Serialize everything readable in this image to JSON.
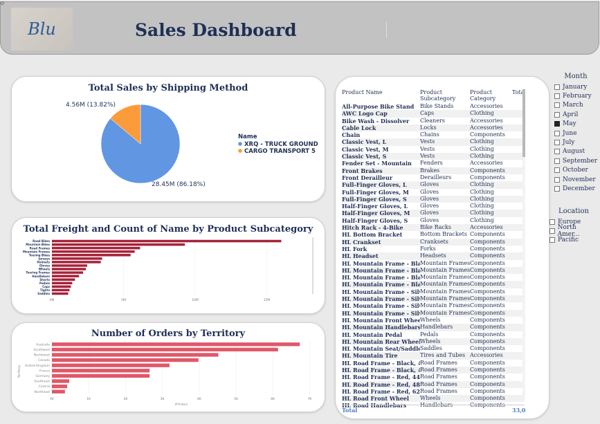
{
  "header": {
    "logo_text": "Blu",
    "title": "Sales Dashboard"
  },
  "pie_chart": {
    "title": "Total Sales by Shipping Method",
    "legend_title": "Name",
    "label_small": "4.56M (13.82%)",
    "label_large": "28.45M (86.18%)",
    "colors": {
      "primary": "#6196e3",
      "secondary": "#fc9b3a"
    },
    "chart_data": {
      "type": "pie",
      "title": "Total Sales by Shipping Method",
      "categories": [
        "XRQ - TRUCK GROUND",
        "CARGO TRANSPORT 5"
      ],
      "values": [
        28.45,
        4.56
      ],
      "legend_placement": "right"
    }
  },
  "freight_chart": {
    "title": "Total Freight and Count of Name by Product Subcategory",
    "color": "#a6233a",
    "chart_data": {
      "type": "bar",
      "title": "Total Freight and Count of Name by Product Subcategory",
      "categories": [
        "Road Bikes",
        "Mountain Bikes",
        "Road Frames",
        "Mountain Frames",
        "Touring Bikes",
        "Jerseys",
        "Helmets",
        "Gloves",
        "Wheels",
        "Touring Frames",
        "Handlebars",
        "Shorts",
        "Pedals",
        "Caps",
        "Tights",
        "Saddles"
      ],
      "values": [
        16.9,
        9.8,
        6.5,
        6.1,
        5.8,
        3.7,
        3.6,
        2.6,
        2.5,
        2.3,
        2.0,
        1.7,
        1.5,
        1.4,
        1.3,
        1.2
      ],
      "xticks": [
        "0M",
        "5M",
        "10M",
        "15M"
      ],
      "xlim": [
        0,
        18
      ]
    }
  },
  "orders_chart": {
    "title": "Number of Orders by Territory",
    "color": "#e05869",
    "ylabel": "Territory",
    "xlabel": "#Orders",
    "chart_data": {
      "type": "bar",
      "title": "Number of Orders by Territory",
      "categories": [
        "Australia",
        "Southwest",
        "Northwest",
        "Canada",
        "United Kingdom",
        "France",
        "Germany",
        "Southeast",
        "Central",
        "Northeast"
      ],
      "values": [
        6.85,
        6.25,
        4.6,
        4.05,
        3.25,
        2.7,
        2.7,
        0.48,
        0.42,
        0.36
      ],
      "xticks": [
        "0K",
        "1K",
        "2K",
        "3K",
        "4K",
        "5K",
        "6K",
        "7K"
      ],
      "xlim": [
        0,
        7
      ],
      "xlabel": "#Orders",
      "ylabel": "Territory"
    }
  },
  "table": {
    "headers": [
      "Product Name",
      "Product Subcategory",
      "Product Category",
      "Tota"
    ],
    "rows": [
      [
        "All-Purpose Bike Stand",
        "Bike Stands",
        "Accessories"
      ],
      [
        "AWC Logo Cap",
        "Caps",
        "Clothing"
      ],
      [
        "Bike Wash - Dissolver",
        "Cleaners",
        "Accessories"
      ],
      [
        "Cable Lock",
        "Locks",
        "Accessories"
      ],
      [
        "Chain",
        "Chains",
        "Components"
      ],
      [
        "Classic Vest, L",
        "Vests",
        "Clothing"
      ],
      [
        "Classic Vest, M",
        "Vests",
        "Clothing"
      ],
      [
        "Classic Vest, S",
        "Vests",
        "Clothing"
      ],
      [
        "Fender Set - Mountain",
        "Fenders",
        "Accessories"
      ],
      [
        "Front Brakes",
        "Brakes",
        "Components"
      ],
      [
        "Front Derailleur",
        "Derailleurs",
        "Components"
      ],
      [
        "Full-Finger Gloves, L",
        "Gloves",
        "Clothing"
      ],
      [
        "Full-Finger Gloves, M",
        "Gloves",
        "Clothing"
      ],
      [
        "Full-Finger Gloves, S",
        "Gloves",
        "Clothing"
      ],
      [
        "Half-Finger Gloves, L",
        "Gloves",
        "Clothing"
      ],
      [
        "Half-Finger Gloves, M",
        "Gloves",
        "Clothing"
      ],
      [
        "Half-Finger Gloves, S",
        "Gloves",
        "Clothing"
      ],
      [
        "Hitch Rack - 4-Bike",
        "Bike Racks",
        "Accessories"
      ],
      [
        "HL Bottom Bracket",
        "Bottom Brackets",
        "Components"
      ],
      [
        "HL Crankset",
        "Cranksets",
        "Components"
      ],
      [
        "HL Fork",
        "Forks",
        "Components"
      ],
      [
        "HL Headset",
        "Headsets",
        "Components"
      ],
      [
        "HL Mountain Frame - Black, 38",
        "Mountain Frames",
        "Components"
      ],
      [
        "HL Mountain Frame - Black, 42",
        "Mountain Frames",
        "Components"
      ],
      [
        "HL Mountain Frame - Black, 44",
        "Mountain Frames",
        "Components"
      ],
      [
        "HL Mountain Frame - Black, 48",
        "Mountain Frames",
        "Components"
      ],
      [
        "HL Mountain Frame - Silver, 38",
        "Mountain Frames",
        "Components"
      ],
      [
        "HL Mountain Frame - Silver, 42",
        "Mountain Frames",
        "Components"
      ],
      [
        "HL Mountain Frame - Silver, 46",
        "Mountain Frames",
        "Components"
      ],
      [
        "HL Mountain Frame - Silver, 48",
        "Mountain Frames",
        "Components"
      ],
      [
        "HL Mountain Front Wheel",
        "Wheels",
        "Components"
      ],
      [
        "HL Mountain Handlebars",
        "Handlebars",
        "Components"
      ],
      [
        "HL Mountain Pedal",
        "Pedals",
        "Components"
      ],
      [
        "HL Mountain Rear Wheel",
        "Wheels",
        "Components"
      ],
      [
        "HL Mountain Seat/Saddle",
        "Saddles",
        "Components"
      ],
      [
        "HL Mountain Tire",
        "Tires and Tubes",
        "Accessories"
      ],
      [
        "HL Road Frame - Black, 44",
        "Road Frames",
        "Components"
      ],
      [
        "HL Road Frame - Black, 48",
        "Road Frames",
        "Components"
      ],
      [
        "HL Road Frame - Red, 44",
        "Road Frames",
        "Components"
      ],
      [
        "HL Road Frame - Red, 48",
        "Road Frames",
        "Components"
      ],
      [
        "HL Road Frame - Red, 62",
        "Road Frames",
        "Components"
      ],
      [
        "HL Road Front Wheel",
        "Wheels",
        "Components"
      ],
      [
        "HL Road Handlebars",
        "Handlebars",
        "Components"
      ]
    ],
    "total_label": "Total",
    "total_value": "33,0"
  },
  "month_slicer": {
    "title": "Month",
    "items": [
      {
        "label": "January",
        "selected": false
      },
      {
        "label": "February",
        "selected": false
      },
      {
        "label": "March",
        "selected": false
      },
      {
        "label": "April",
        "selected": false
      },
      {
        "label": "May",
        "selected": true
      },
      {
        "label": "June",
        "selected": false
      },
      {
        "label": "July",
        "selected": false
      },
      {
        "label": "August",
        "selected": false
      },
      {
        "label": "September",
        "selected": false
      },
      {
        "label": "October",
        "selected": false
      },
      {
        "label": "November",
        "selected": false
      },
      {
        "label": "December",
        "selected": false
      }
    ]
  },
  "location_slicer": {
    "title": "Location",
    "items": [
      {
        "label": "Europe",
        "selected": false
      },
      {
        "label": "North Amer...",
        "selected": false
      },
      {
        "label": "Pacific",
        "selected": false
      }
    ]
  }
}
